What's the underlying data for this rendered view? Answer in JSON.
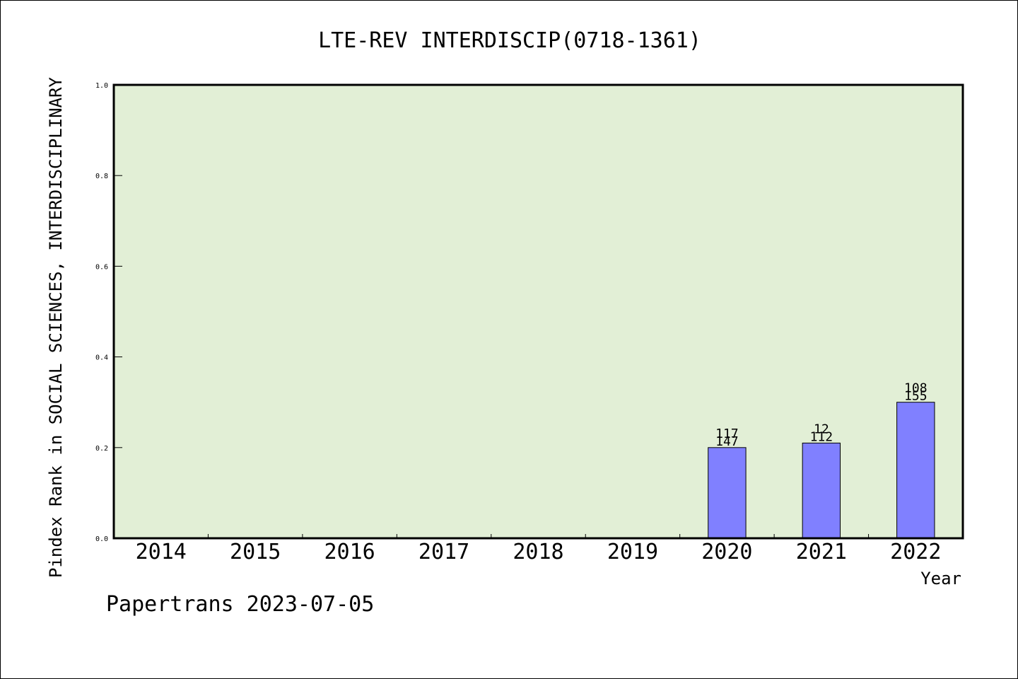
{
  "chart_data": {
    "type": "bar",
    "title": "LTE-REV INTERDISCIP(0718-1361)",
    "ylabel": "Pindex Rank in SOCIAL SCIENCES, INTERDISCIPLINARY",
    "xlabel": "Year",
    "categories": [
      "2014",
      "2015",
      "2016",
      "2017",
      "2018",
      "2019",
      "2020",
      "2021",
      "2022"
    ],
    "values": [
      null,
      null,
      null,
      null,
      null,
      null,
      0.2,
      0.21,
      0.3
    ],
    "bar_labels_top": [
      "",
      "",
      "",
      "",
      "",
      "",
      "117",
      "12",
      "108"
    ],
    "bar_labels_bottom": [
      "",
      "",
      "",
      "",
      "",
      "",
      "147",
      "112",
      "155"
    ],
    "ylim": [
      0,
      1.0
    ],
    "yticks": [
      "0.0",
      "0.2",
      "0.4",
      "0.6",
      "0.8",
      "1.0"
    ],
    "grid": false,
    "colors": {
      "plot_background": "#e2efd6",
      "bar_fill": "#8080ff",
      "axis": "#000000"
    }
  },
  "footer": {
    "text": "Papertrans 2023-07-05"
  }
}
